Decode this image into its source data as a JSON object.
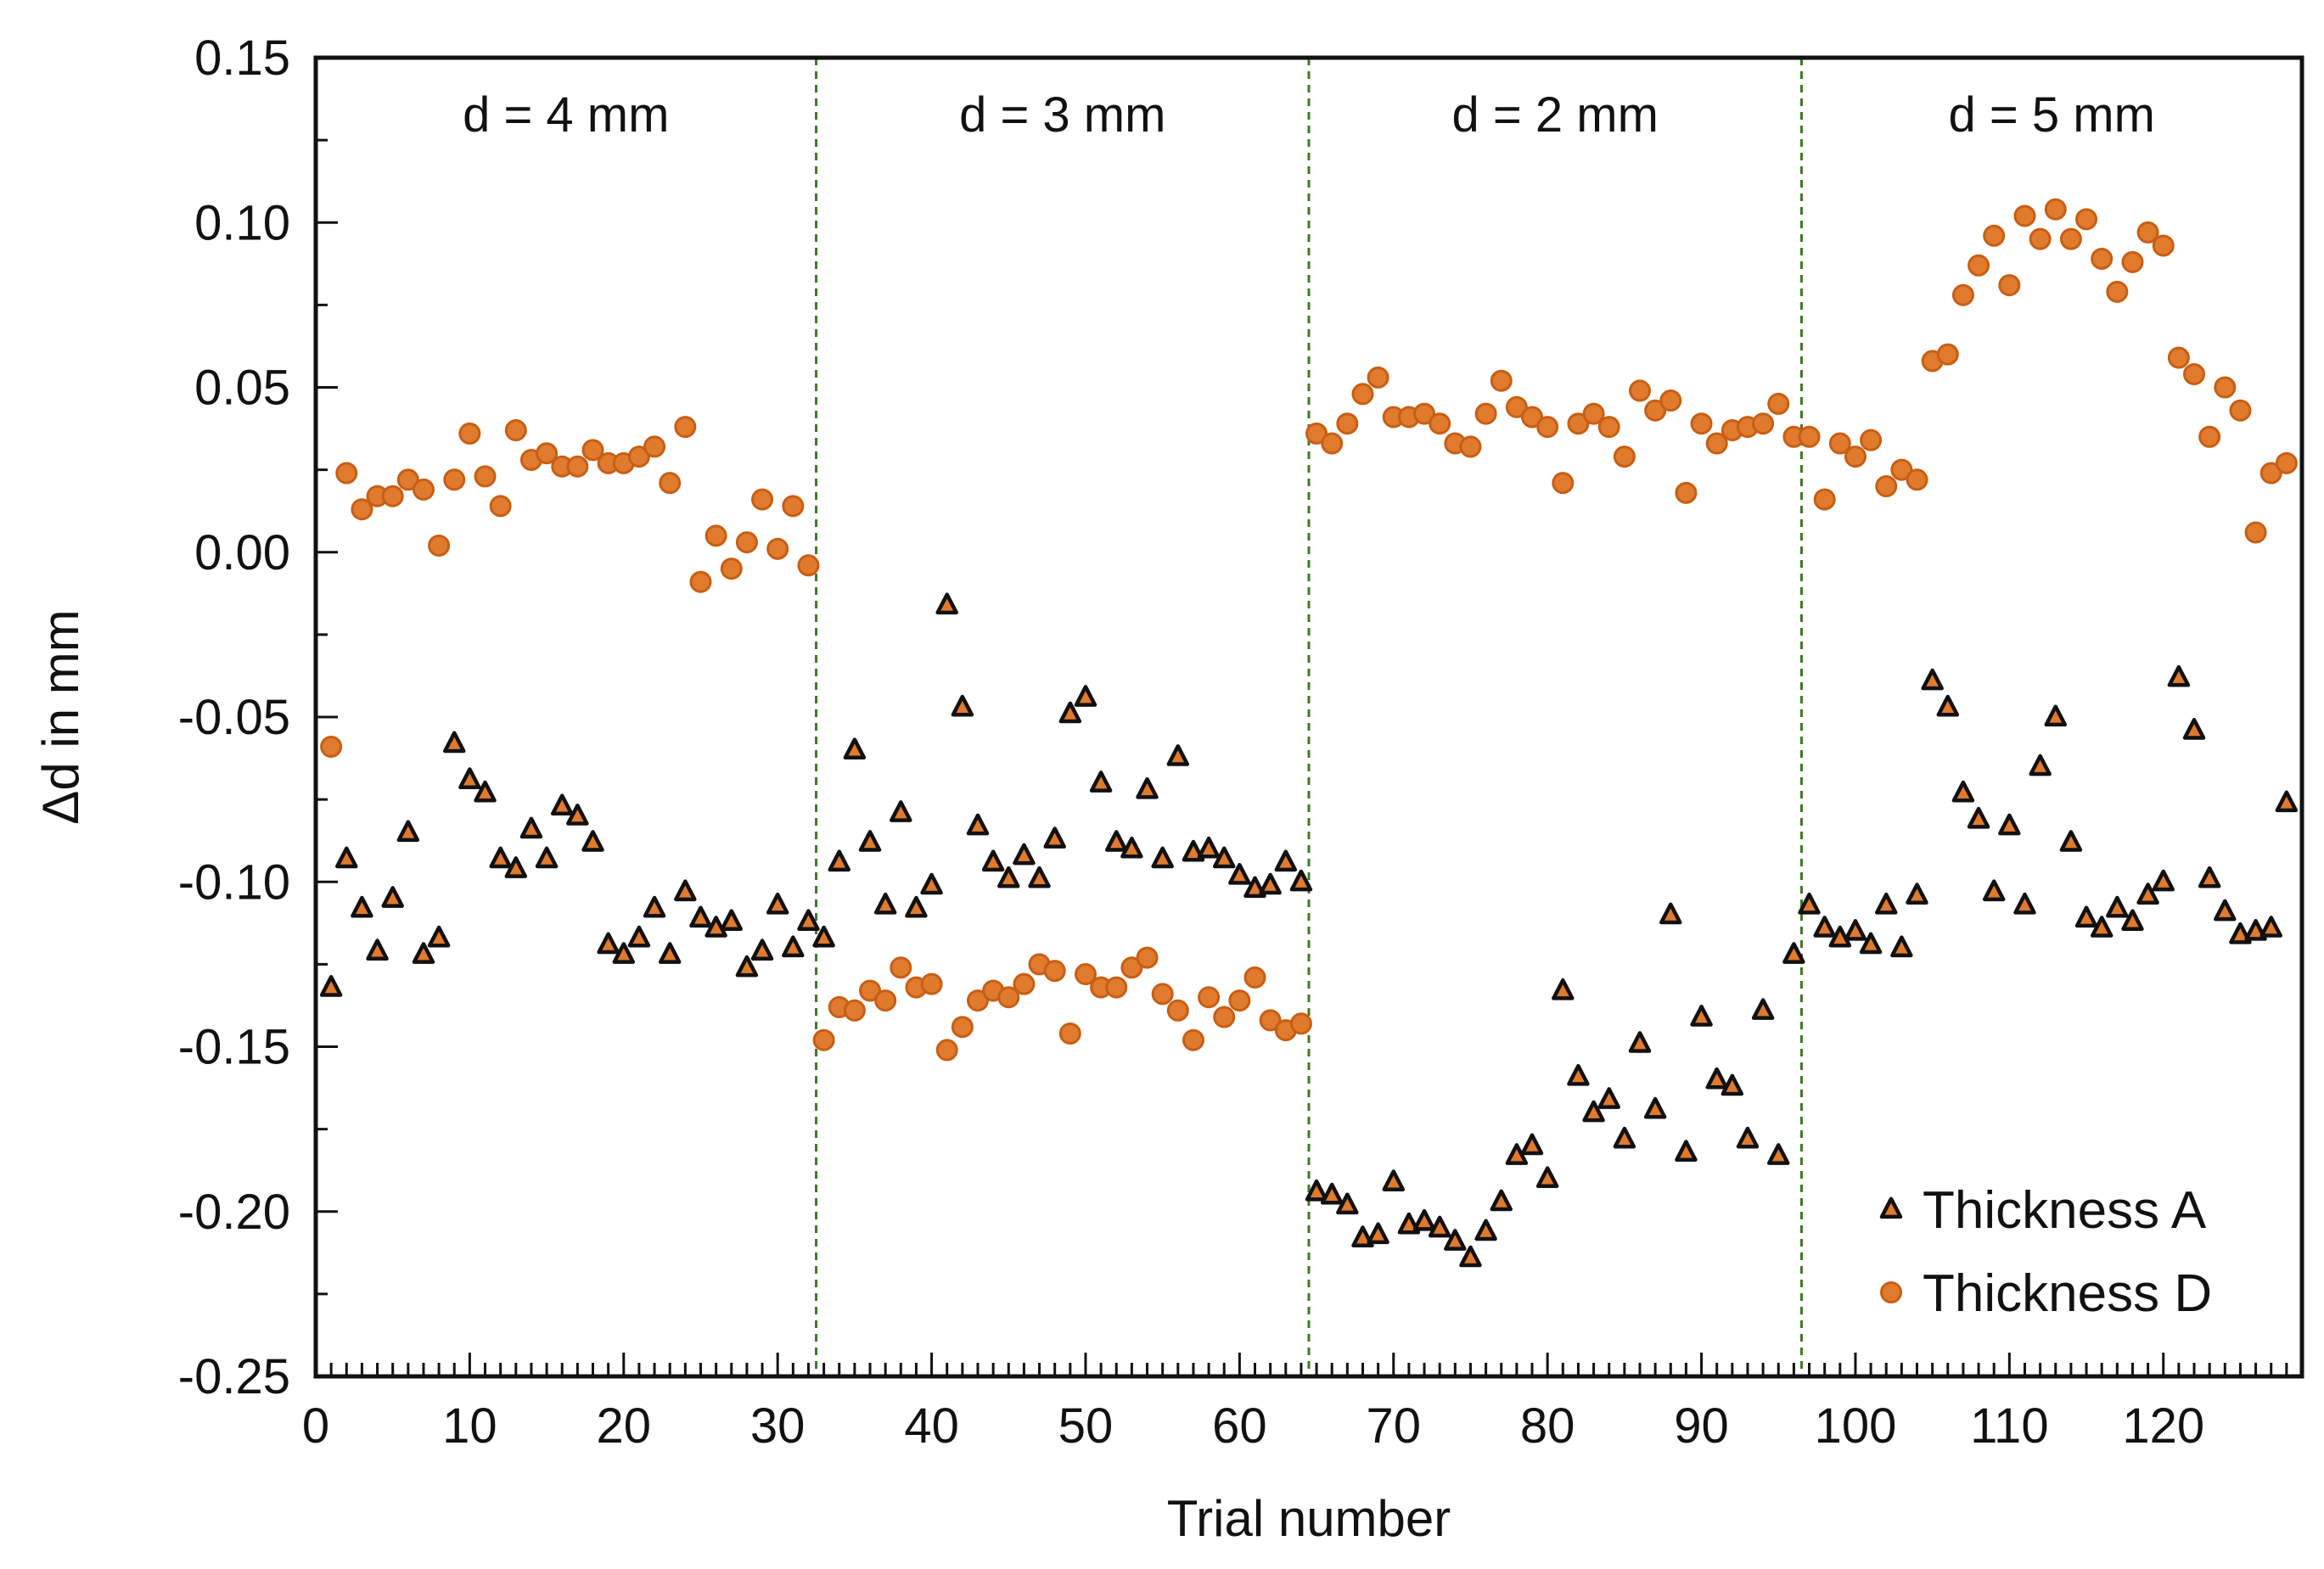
{
  "chart_data": {
    "type": "scatter",
    "title": "",
    "xlabel": "Trial number",
    "ylabel": "Δd in mm",
    "xlim": [
      0,
      129
    ],
    "ylim": [
      -0.25,
      0.15
    ],
    "grid": false,
    "legend_position": "bottom-right",
    "x_ticks": [
      0,
      10,
      20,
      30,
      40,
      50,
      60,
      70,
      80,
      90,
      100,
      110,
      120
    ],
    "x_tick_labels": [
      "0",
      "10",
      "20",
      "30",
      "40",
      "50",
      "60",
      "70",
      "80",
      "90",
      "100",
      "110",
      "120"
    ],
    "y_ticks": [
      0.15,
      0.1,
      0.05,
      0.0,
      -0.05,
      -0.1,
      -0.15,
      -0.2,
      -0.25
    ],
    "y_tick_labels": [
      "0.15",
      "0.10",
      "0.05",
      "0.00",
      "-0.05",
      "-0.10",
      "-0.15",
      "-0.20",
      "-0.25"
    ],
    "x_minor_step": 1,
    "regions": [
      {
        "label": "d = 4 mm",
        "from": 0,
        "to": 32.5
      },
      {
        "label": "d = 3 mm",
        "from": 32.5,
        "to": 64.5
      },
      {
        "label": "d = 2 mm",
        "from": 64.5,
        "to": 96.5
      },
      {
        "label": "d = 5 mm",
        "from": 96.5,
        "to": 129
      }
    ],
    "separators": [
      32.5,
      64.5,
      96.5
    ],
    "colors": {
      "marker_fill": "#e07a2c",
      "marker_edge_A": "#111111",
      "marker_edge_D": "#c85e14",
      "separator": "#3f7a22"
    },
    "series": [
      {
        "name": "Thickness A",
        "marker": "triangle",
        "values": [
          -0.132,
          -0.093,
          -0.108,
          -0.121,
          -0.105,
          -0.085,
          -0.122,
          -0.117,
          -0.058,
          -0.069,
          -0.073,
          -0.093,
          -0.096,
          -0.084,
          -0.093,
          -0.077,
          -0.08,
          -0.088,
          -0.119,
          -0.122,
          -0.117,
          -0.108,
          -0.122,
          -0.103,
          -0.111,
          -0.114,
          -0.112,
          -0.126,
          -0.121,
          -0.107,
          -0.12,
          -0.112,
          -0.117,
          -0.094,
          -0.06,
          -0.088,
          -0.107,
          -0.079,
          -0.108,
          -0.101,
          -0.016,
          -0.047,
          -0.083,
          -0.094,
          -0.099,
          -0.092,
          -0.099,
          -0.087,
          -0.049,
          -0.044,
          -0.07,
          -0.088,
          -0.09,
          -0.072,
          -0.093,
          -0.062,
          -0.091,
          -0.09,
          -0.093,
          -0.098,
          -0.102,
          -0.101,
          -0.094,
          -0.1,
          -0.194,
          -0.195,
          -0.198,
          -0.208,
          -0.207,
          -0.191,
          -0.204,
          -0.203,
          -0.205,
          -0.209,
          -0.214,
          -0.206,
          -0.197,
          -0.183,
          -0.18,
          -0.19,
          -0.133,
          -0.159,
          -0.17,
          -0.166,
          -0.178,
          -0.149,
          -0.169,
          -0.11,
          -0.182,
          -0.141,
          -0.16,
          -0.162,
          -0.178,
          -0.139,
          -0.183,
          -0.122,
          -0.107,
          -0.114,
          -0.117,
          -0.115,
          -0.119,
          -0.107,
          -0.12,
          -0.104,
          -0.039,
          -0.047,
          -0.073,
          -0.081,
          -0.103,
          -0.083,
          -0.107,
          -0.065,
          -0.05,
          -0.088,
          -0.111,
          -0.114,
          -0.108,
          -0.112,
          -0.104,
          -0.1,
          -0.038,
          -0.054,
          -0.099,
          -0.109,
          -0.116,
          -0.115,
          -0.114,
          -0.076
        ]
      },
      {
        "name": "Thickness D",
        "marker": "circle",
        "values": [
          -0.059,
          0.024,
          0.013,
          0.017,
          0.017,
          0.022,
          0.019,
          0.002,
          0.022,
          0.036,
          0.023,
          0.014,
          0.037,
          0.028,
          0.03,
          0.026,
          0.026,
          0.031,
          0.027,
          0.027,
          0.029,
          0.032,
          0.021,
          0.038,
          -0.009,
          0.005,
          -0.005,
          0.003,
          0.016,
          0.001,
          0.014,
          -0.004,
          -0.148,
          -0.138,
          -0.139,
          -0.133,
          -0.136,
          -0.126,
          -0.132,
          -0.131,
          -0.151,
          -0.144,
          -0.136,
          -0.133,
          -0.135,
          -0.131,
          -0.125,
          -0.127,
          -0.146,
          -0.128,
          -0.132,
          -0.132,
          -0.126,
          -0.123,
          -0.134,
          -0.139,
          -0.148,
          -0.135,
          -0.141,
          -0.136,
          -0.129,
          -0.142,
          -0.145,
          -0.143,
          0.036,
          0.033,
          0.039,
          0.048,
          0.053,
          0.041,
          0.041,
          0.042,
          0.039,
          0.033,
          0.032,
          0.042,
          0.052,
          0.044,
          0.041,
          0.038,
          0.021,
          0.039,
          0.042,
          0.038,
          0.029,
          0.049,
          0.043,
          0.046,
          0.018,
          0.039,
          0.033,
          0.037,
          0.038,
          0.039,
          0.045,
          0.035,
          0.035,
          0.016,
          0.033,
          0.029,
          0.034,
          0.02,
          0.025,
          0.022,
          0.058,
          0.06,
          0.078,
          0.087,
          0.096,
          0.081,
          0.102,
          0.095,
          0.104,
          0.095,
          0.101,
          0.089,
          0.079,
          0.088,
          0.097,
          0.093,
          0.059,
          0.054,
          0.035,
          0.05,
          0.043,
          0.006,
          0.024,
          0.027
        ]
      }
    ]
  }
}
